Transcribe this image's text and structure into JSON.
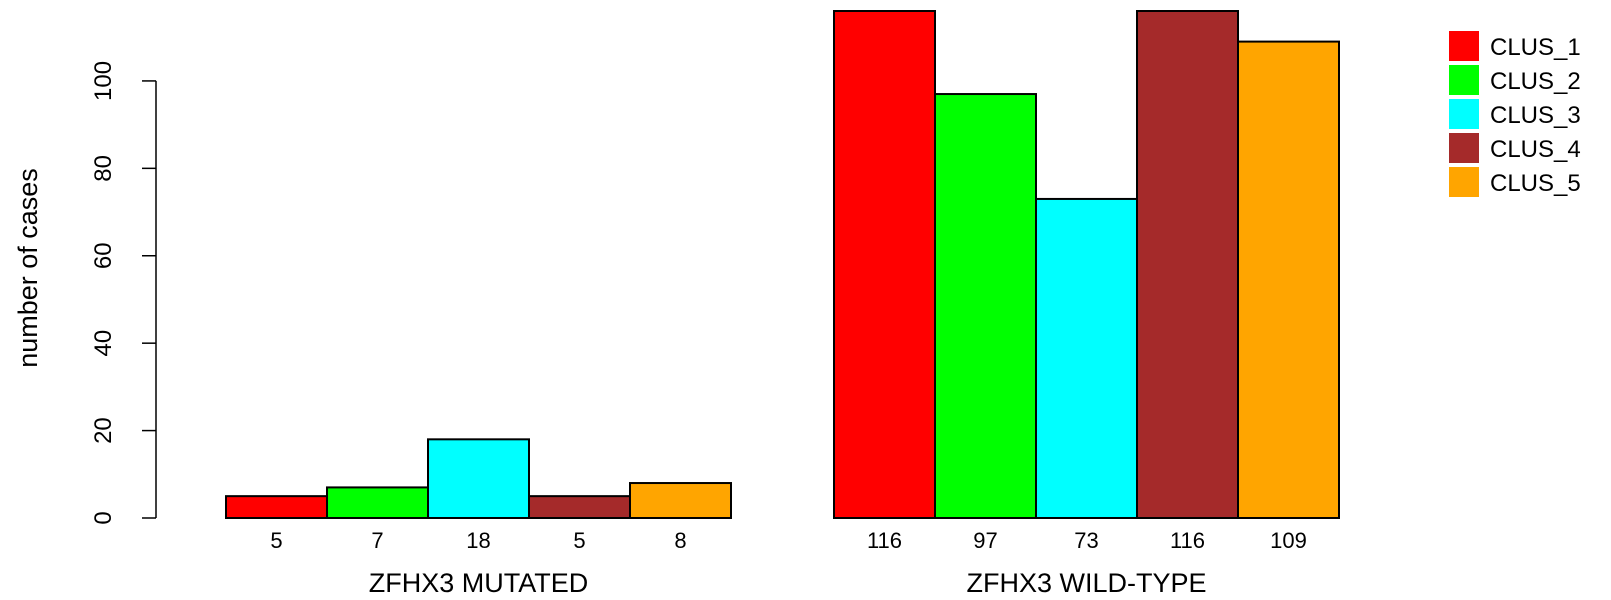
{
  "chart_data": {
    "type": "bar",
    "ylabel": "number of cases",
    "ylim": [
      0,
      116
    ],
    "yticks": [
      0,
      20,
      40,
      60,
      80,
      100
    ],
    "grid": false,
    "legend_position": "top-right",
    "groups": [
      {
        "label": "ZFHX3 MUTATED",
        "values": [
          5,
          7,
          18,
          5,
          8
        ]
      },
      {
        "label": "ZFHX3 WILD-TYPE",
        "values": [
          116,
          97,
          73,
          116,
          109
        ]
      }
    ],
    "series": [
      {
        "name": "CLUS_1",
        "color": "#ff0000"
      },
      {
        "name": "CLUS_2",
        "color": "#00ff00"
      },
      {
        "name": "CLUS_3",
        "color": "#00ffff"
      },
      {
        "name": "CLUS_4",
        "color": "#a52a2a"
      },
      {
        "name": "CLUS_5",
        "color": "#ffa500"
      }
    ]
  }
}
